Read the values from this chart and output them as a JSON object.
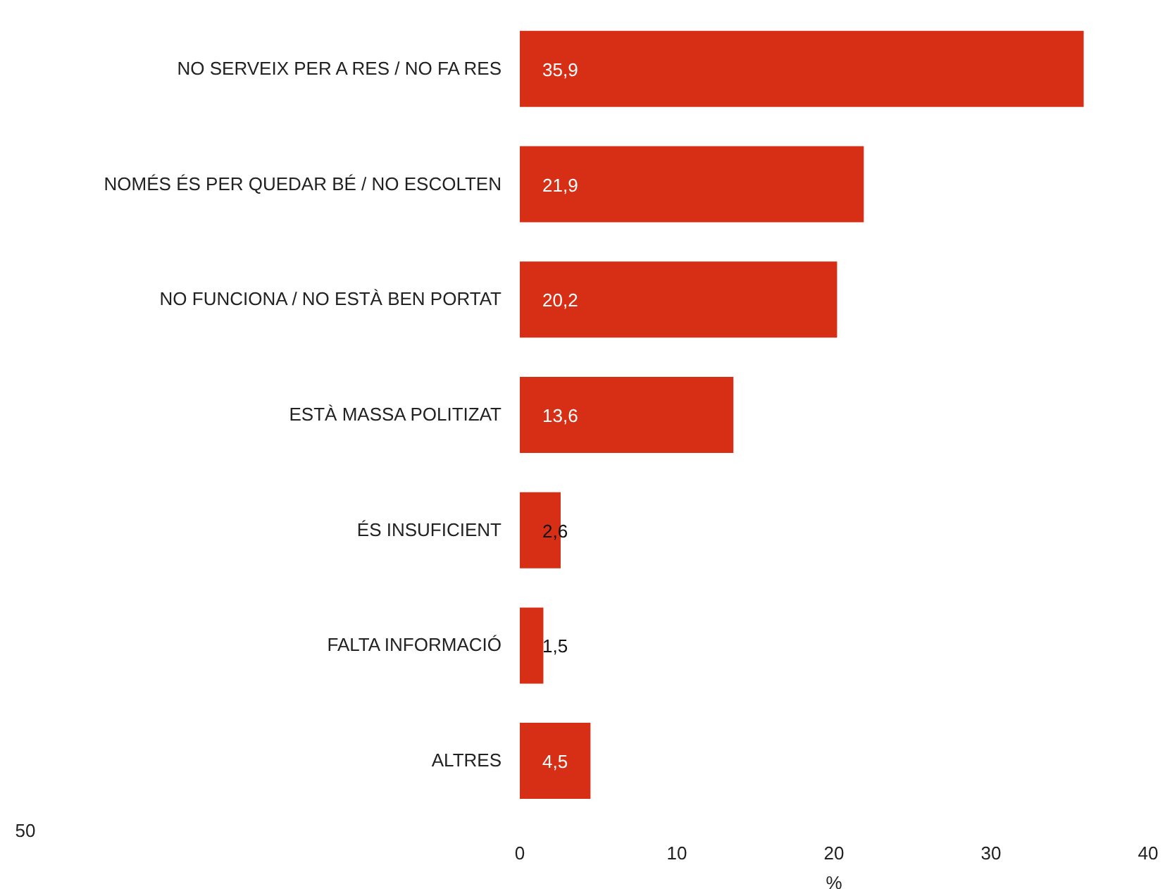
{
  "chart_data": {
    "type": "bar",
    "orientation": "horizontal",
    "xlabel": "%",
    "categories": [
      "NO SERVEIX PER A RES / NO FA RES",
      "NOMÉS ÉS PER QUEDAR BÉ / NO ESCOLTEN",
      "NO FUNCIONA / NO ESTÀ BEN PORTAT",
      "ESTÀ MASSA POLITIZAT",
      "ÉS INSUFICIENT",
      "FALTA INFORMACIÓ",
      "ALTRES"
    ],
    "values": [
      35.9,
      21.9,
      20.2,
      13.6,
      2.6,
      1.5,
      4.5
    ],
    "value_labels": [
      "35,9",
      "21,9",
      "20,2",
      "13,6",
      "2,6",
      "1,5",
      "4,5"
    ],
    "color": "#d62f16",
    "xlim": [
      0,
      40
    ],
    "xticks": [
      0,
      10,
      20,
      30,
      40
    ],
    "annotations": [
      "50"
    ]
  }
}
